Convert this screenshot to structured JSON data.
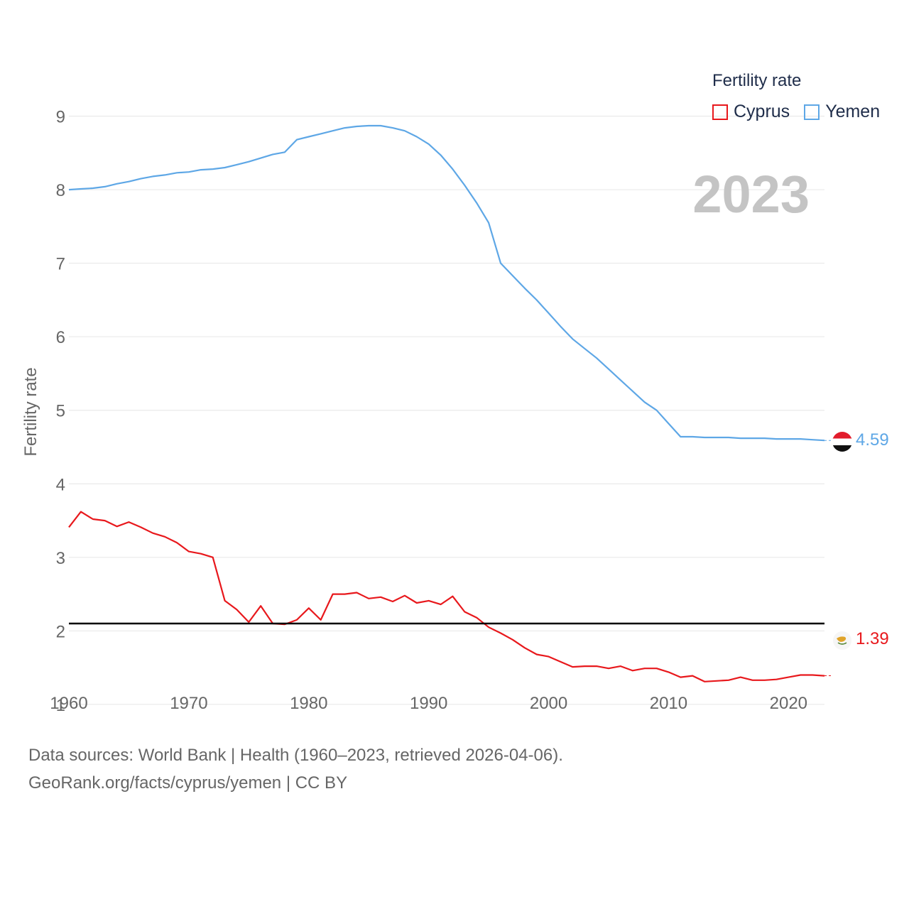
{
  "legend": {
    "title": "Fertility rate",
    "items": [
      {
        "name": "Cyprus",
        "color": "#e8181c"
      },
      {
        "name": "Yemen",
        "color": "#5ea7e6"
      }
    ]
  },
  "year_label": "2023",
  "end_labels": {
    "yemen": "4.59",
    "cyprus": "1.39"
  },
  "reference_line": 2.1,
  "footer": {
    "line1": "Data sources: World Bank | Health (1960–2023, retrieved 2026-04-06).",
    "line2": "GeoRank.org/facts/cyprus/yemen | CC BY"
  },
  "chart_data": {
    "type": "line",
    "title": "Fertility rate",
    "xlabel": "",
    "ylabel": "Fertility rate",
    "xlim": [
      1960,
      2023
    ],
    "ylim": [
      0.7,
      9.15
    ],
    "xticks": [
      1960,
      1970,
      1980,
      1990,
      2000,
      2010,
      2020
    ],
    "yticks": [
      1,
      2,
      3,
      4,
      5,
      6,
      7,
      8,
      9
    ],
    "x": [
      1960,
      1961,
      1962,
      1963,
      1964,
      1965,
      1966,
      1967,
      1968,
      1969,
      1970,
      1971,
      1972,
      1973,
      1974,
      1975,
      1976,
      1977,
      1978,
      1979,
      1980,
      1981,
      1982,
      1983,
      1984,
      1985,
      1986,
      1987,
      1988,
      1989,
      1990,
      1991,
      1992,
      1993,
      1994,
      1995,
      1996,
      1997,
      1998,
      1999,
      2000,
      2001,
      2002,
      2003,
      2004,
      2005,
      2006,
      2007,
      2008,
      2009,
      2010,
      2011,
      2012,
      2013,
      2014,
      2015,
      2016,
      2017,
      2018,
      2019,
      2020,
      2021,
      2022,
      2023
    ],
    "series": [
      {
        "name": "Yemen",
        "color": "#5ea7e6",
        "values": [
          8.0,
          8.01,
          8.02,
          8.04,
          8.08,
          8.11,
          8.15,
          8.18,
          8.2,
          8.23,
          8.24,
          8.27,
          8.28,
          8.3,
          8.34,
          8.38,
          8.43,
          8.48,
          8.51,
          8.68,
          8.72,
          8.76,
          8.8,
          8.84,
          8.86,
          8.87,
          8.87,
          8.84,
          8.8,
          8.72,
          8.62,
          8.47,
          8.28,
          8.06,
          7.82,
          7.55,
          7.0,
          6.83,
          6.66,
          6.5,
          6.32,
          6.14,
          5.97,
          5.84,
          5.71,
          5.56,
          5.41,
          5.26,
          5.11,
          5.0,
          4.82,
          4.64,
          4.64,
          4.63,
          4.63,
          4.63,
          4.62,
          4.62,
          4.62,
          4.61,
          4.61,
          4.61,
          4.6,
          4.59
        ]
      },
      {
        "name": "Cyprus",
        "color": "#e8181c",
        "values": [
          3.41,
          3.62,
          3.52,
          3.5,
          3.42,
          3.48,
          3.41,
          3.33,
          3.28,
          3.2,
          3.08,
          3.05,
          3.0,
          2.41,
          2.29,
          2.12,
          2.34,
          2.1,
          2.09,
          2.15,
          2.31,
          2.15,
          2.5,
          2.5,
          2.52,
          2.44,
          2.46,
          2.4,
          2.48,
          2.38,
          2.41,
          2.36,
          2.47,
          2.26,
          2.18,
          2.05,
          1.97,
          1.88,
          1.77,
          1.68,
          1.65,
          1.58,
          1.51,
          1.52,
          1.52,
          1.49,
          1.52,
          1.46,
          1.49,
          1.49,
          1.44,
          1.37,
          1.39,
          1.31,
          1.32,
          1.33,
          1.37,
          1.33,
          1.33,
          1.34,
          1.37,
          1.4,
          1.4,
          1.39
        ]
      }
    ]
  }
}
